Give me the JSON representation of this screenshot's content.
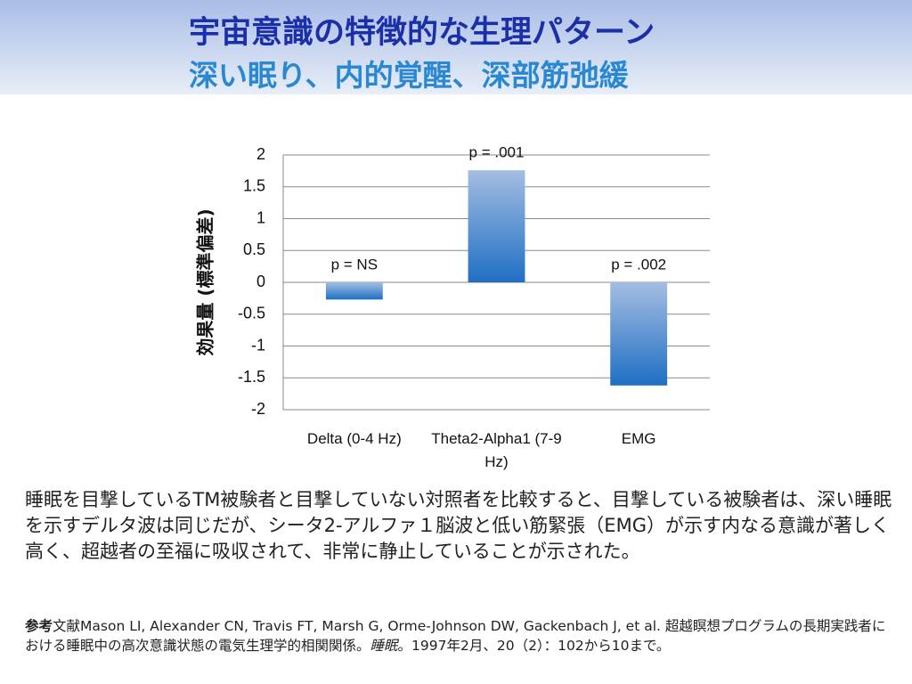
{
  "header": {
    "title": "宇宙意識の特徴的な生理パターン",
    "subtitle": "深い眠り、内的覚醒、深部筋弛緩"
  },
  "chart_data": {
    "type": "bar",
    "y_label": "効果量 (標準偏差)",
    "categories": [
      "Delta (0-4 Hz)",
      "Theta2-Alpha1 (7-9 Hz)",
      "EMG"
    ],
    "values": [
      -0.27,
      1.76,
      -1.62
    ],
    "annotations": [
      "p = NS",
      "p = .001",
      "p = .002"
    ],
    "color": "#1f6fc4",
    "ylim": [
      -2,
      2
    ],
    "yticks": [
      2,
      1.5,
      1,
      0.5,
      0,
      -0.5,
      -1,
      -1.5,
      -2
    ],
    "grid": true
  },
  "body": {
    "text": "睡眠を目撃しているTM被験者と目撃していない対照者を比較すると、目撃している被験者は、深い睡眠を示すデルタ波は同じだが、シータ2-アルファ１脳波と低い筋緊張（EMG）が示す内なる意識が著しく高く、超越者の至福に吸収されて、非常に静止していることが示された。"
  },
  "reference": {
    "label": "参考",
    "text": "文献Mason LI, Alexander CN, Travis FT, Marsh G, Orme-Johnson DW, Gackenbach J, et al. 超越瞑想プログラムの長期実践者における睡眠中の高次意識状態の電気生理学的相関関係。",
    "journal": "睡眠",
    "tail": "。1997年2月、20（2）：102から10まで。"
  }
}
